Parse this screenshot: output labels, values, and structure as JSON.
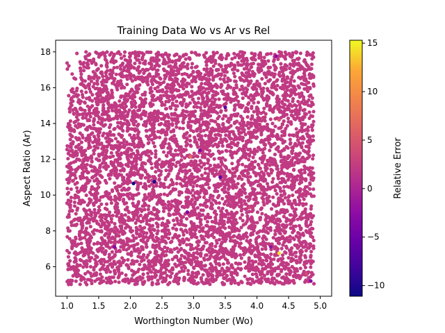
{
  "chart_data": {
    "type": "scatter",
    "title": "Training Data Wo vs Ar vs Rel",
    "xlabel": "Worthington Number (Wo)",
    "ylabel": "Aspect Ratio (Ar)",
    "xlim": [
      0.82,
      5.18
    ],
    "ylim": [
      4.35,
      18.65
    ],
    "x_ticks": [
      1.0,
      1.5,
      2.0,
      2.5,
      3.0,
      3.5,
      4.0,
      4.5,
      5.0
    ],
    "x_tick_labels": [
      "1.0",
      "1.5",
      "2.0",
      "2.5",
      "3.0",
      "3.5",
      "4.0",
      "4.5",
      "5.0"
    ],
    "y_ticks": [
      6,
      8,
      10,
      12,
      14,
      16,
      18
    ],
    "y_tick_labels": [
      "6",
      "8",
      "10",
      "12",
      "14",
      "16",
      "18"
    ],
    "grid": false,
    "colorbar": {
      "label": "Relative Error",
      "colormap": "plasma",
      "range": [
        -11.1,
        15.3
      ],
      "ticks": [
        -10,
        -5,
        0,
        5,
        10,
        15
      ],
      "tick_labels": [
        "−10",
        "−5",
        "0",
        "5",
        "10",
        "15"
      ]
    },
    "bulk": {
      "x_range": [
        1.0,
        4.9
      ],
      "y_range": [
        5.0,
        18.0
      ],
      "approx_count": 6000,
      "relative_error": 0.0,
      "color": "#c03a83",
      "sparse_region": "upper-left corner (Wo < 1.2, Ar > 16)"
    },
    "highlighted_points": [
      {
        "x": 2.05,
        "y": 10.65,
        "rel": -11.0
      },
      {
        "x": 2.38,
        "y": 10.75,
        "rel": -10.5
      },
      {
        "x": 3.5,
        "y": 14.9,
        "rel": -6.0
      },
      {
        "x": 3.42,
        "y": 11.0,
        "rel": -5.5
      },
      {
        "x": 2.9,
        "y": 9.05,
        "rel": -4.0
      },
      {
        "x": 3.1,
        "y": 12.5,
        "rel": -3.5
      },
      {
        "x": 1.75,
        "y": 7.1,
        "rel": -3.0
      },
      {
        "x": 4.85,
        "y": 5.2,
        "rel": -3.0
      },
      {
        "x": 4.3,
        "y": 17.75,
        "rel": -2.5
      },
      {
        "x": 4.22,
        "y": 7.1,
        "rel": -2.0
      },
      {
        "x": 2.95,
        "y": 12.15,
        "rel": 7.0
      },
      {
        "x": 4.35,
        "y": 6.75,
        "rel": 14.5
      },
      {
        "x": 4.35,
        "y": 14.2,
        "rel": 5.0
      },
      {
        "x": 3.88,
        "y": 9.3,
        "rel": 4.0
      },
      {
        "x": 4.78,
        "y": 5.6,
        "rel": 4.0
      }
    ]
  }
}
